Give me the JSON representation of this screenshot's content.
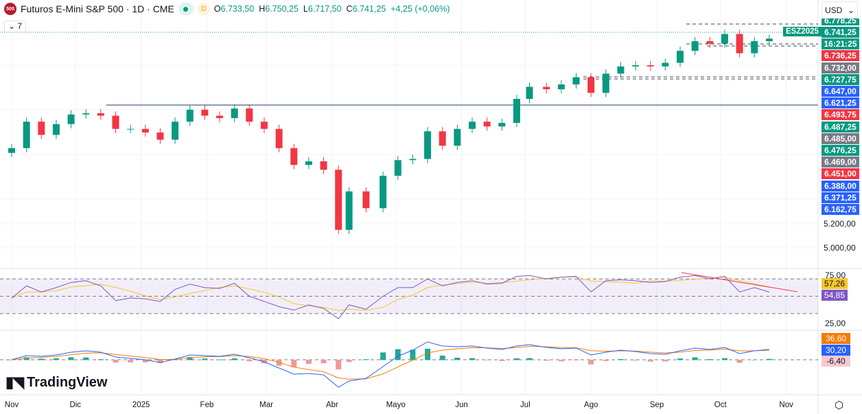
{
  "header": {
    "logo_text": "500",
    "title": "Futuros E-Mini S&P 500 · 1D · CME",
    "interval_badge": "D",
    "open": "6.733,50",
    "high": "6.750,25",
    "low": "6.717,50",
    "close": "6.741,25",
    "change": "+4,25 (+0,06%)",
    "open_label": "O",
    "high_label": "H",
    "low_label": "L",
    "close_label": "C"
  },
  "indicators_toggle": "7",
  "currency": "USD",
  "symbol_tag": "ESZ2025",
  "price_tags": [
    {
      "v": "6.741,25",
      "c": "#089981"
    },
    {
      "v": "16:21:25",
      "c": "#089981"
    },
    {
      "v": "6.736,25",
      "c": "#f23645"
    },
    {
      "v": "6.732,00",
      "c": "#787b86"
    },
    {
      "v": "6.727,75",
      "c": "#089981"
    },
    {
      "v": "6.647,00",
      "c": "#2962ff"
    },
    {
      "v": "6.621,25",
      "c": "#2962ff"
    },
    {
      "v": "6.493,75",
      "c": "#f23645"
    },
    {
      "v": "6.487,25",
      "c": "#089981"
    },
    {
      "v": "6.485,00",
      "c": "#787b86"
    },
    {
      "v": "6.476,25",
      "c": "#089981"
    },
    {
      "v": "6.469,00",
      "c": "#787b86"
    },
    {
      "v": "6.451,00",
      "c": "#f23645"
    },
    {
      "v": "6.388,00",
      "c": "#2962ff"
    },
    {
      "v": "6.371,25",
      "c": "#2962ff"
    },
    {
      "v": "6.162,75",
      "c": "#2962ff"
    }
  ],
  "top_partial_tag": "6.778,25",
  "price_axis": [
    "5.200,00",
    "5.000,00"
  ],
  "rsi_axis": [
    "75,00",
    "25,00"
  ],
  "rsi_tags": [
    {
      "v": "57,26",
      "c": "#f7c52c",
      "t": "#131722"
    },
    {
      "v": "54,85",
      "c": "#7e57c2",
      "t": "#fff"
    }
  ],
  "macd_tags": [
    {
      "v": "36,60",
      "c": "#f57c00",
      "t": "#fff"
    },
    {
      "v": "30,20",
      "c": "#2962ff",
      "t": "#fff"
    },
    {
      "v": "-6,40",
      "c": "#f8c9cf",
      "t": "#131722"
    }
  ],
  "x_ticks": [
    {
      "l": "Nov",
      "d": "2024-11-01"
    },
    {
      "l": "Dic",
      "d": "2024-12-01"
    },
    {
      "l": "2025",
      "d": "2025-01-01"
    },
    {
      "l": "Feb",
      "d": "2025-02-01"
    },
    {
      "l": "Mar",
      "d": "2025-03-01"
    },
    {
      "l": "Abr",
      "d": "2025-04-01"
    },
    {
      "l": "Mayo",
      "d": "2025-05-01"
    },
    {
      "l": "Jun",
      "d": "2025-06-01"
    },
    {
      "l": "Jul",
      "d": "2025-07-01"
    },
    {
      "l": "Ago",
      "d": "2025-08-01"
    },
    {
      "l": "Sep",
      "d": "2025-09-01"
    },
    {
      "l": "Oct",
      "d": "2025-10-01"
    },
    {
      "l": "Nov",
      "d": "2025-11-01"
    }
  ],
  "brand": "TradingView",
  "colors": {
    "up": "#089981",
    "down": "#f23645",
    "rsi": "#7e57c2",
    "rsi_ma": "#f7c52c",
    "macd": "#2962ff",
    "signal": "#f57c00"
  },
  "chart_data": {
    "type": "candlestick",
    "title": "Futuros E-Mini S&P 500 · 1D · CME",
    "ylim": [
      4800,
      6800
    ],
    "x": [
      "2024-11-01",
      "2024-11-08",
      "2024-11-15",
      "2024-11-22",
      "2024-11-29",
      "2024-12-06",
      "2024-12-13",
      "2024-12-20",
      "2024-12-27",
      "2025-01-03",
      "2025-01-10",
      "2025-01-17",
      "2025-01-24",
      "2025-01-31",
      "2025-02-07",
      "2025-02-14",
      "2025-02-21",
      "2025-02-28",
      "2025-03-07",
      "2025-03-14",
      "2025-03-21",
      "2025-03-28",
      "2025-04-04",
      "2025-04-09",
      "2025-04-17",
      "2025-04-25",
      "2025-05-02",
      "2025-05-09",
      "2025-05-16",
      "2025-05-23",
      "2025-05-30",
      "2025-06-06",
      "2025-06-13",
      "2025-06-20",
      "2025-06-27",
      "2025-07-03",
      "2025-07-11",
      "2025-07-18",
      "2025-07-25",
      "2025-08-01",
      "2025-08-08",
      "2025-08-15",
      "2025-08-22",
      "2025-08-29",
      "2025-09-05",
      "2025-09-12",
      "2025-09-19",
      "2025-09-26",
      "2025-10-03",
      "2025-10-10",
      "2025-10-17",
      "2025-10-24"
    ],
    "close": [
      5830,
      6050,
      5940,
      6030,
      6110,
      6120,
      6100,
      5990,
      5990,
      5960,
      5900,
      6050,
      6150,
      6100,
      6080,
      6160,
      6050,
      5990,
      5830,
      5690,
      5720,
      5650,
      5150,
      5470,
      5330,
      5600,
      5730,
      5740,
      5970,
      5850,
      5990,
      6050,
      6010,
      6040,
      6240,
      6340,
      6320,
      6360,
      6420,
      6290,
      6450,
      6510,
      6520,
      6510,
      6540,
      6640,
      6720,
      6700,
      6780,
      6620,
      6720,
      6741.25
    ],
    "rsi": [
      48,
      62,
      55,
      60,
      66,
      68,
      62,
      45,
      48,
      47,
      44,
      58,
      64,
      60,
      59,
      65,
      50,
      44,
      38,
      34,
      40,
      36,
      24,
      40,
      35,
      50,
      60,
      60,
      70,
      62,
      66,
      68,
      64,
      65,
      73,
      74,
      70,
      72,
      73,
      55,
      68,
      69,
      68,
      66,
      67,
      72,
      74,
      70,
      73,
      55,
      60,
      54.85
    ],
    "rsi_ma_last": 57.26,
    "macd": [
      0,
      12,
      10,
      14,
      22,
      26,
      22,
      8,
      4,
      0,
      -8,
      2,
      14,
      12,
      10,
      16,
      6,
      -6,
      -24,
      -42,
      -40,
      -44,
      -80,
      -62,
      -54,
      -20,
      10,
      28,
      52,
      40,
      38,
      40,
      34,
      30,
      40,
      44,
      36,
      32,
      34,
      14,
      22,
      28,
      24,
      18,
      16,
      26,
      34,
      30,
      36,
      18,
      26,
      30.2
    ],
    "signal_last": 36.6,
    "histogram_last": -6.4
  }
}
